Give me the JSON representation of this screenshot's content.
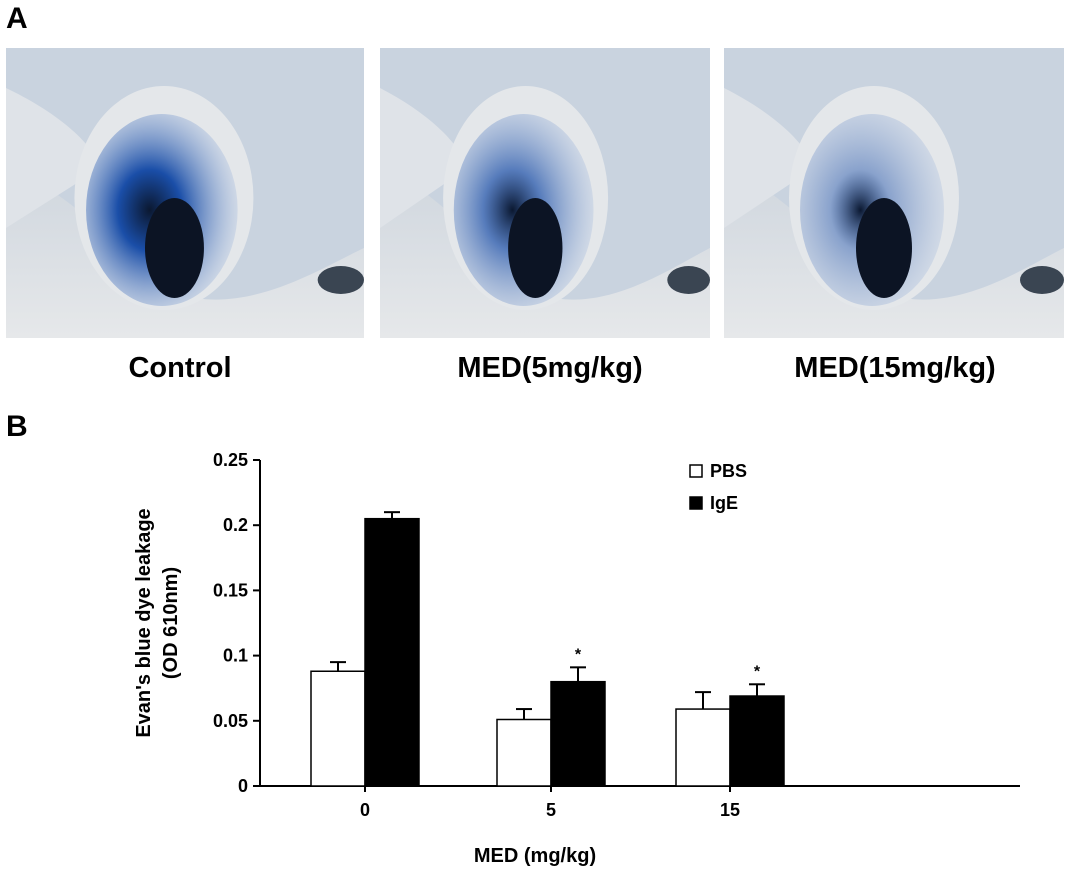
{
  "panel_a": {
    "label": "A",
    "photos": [
      {
        "caption": "Control",
        "dye_intensity": 1.0
      },
      {
        "caption": "MED(5mg/kg)",
        "dye_intensity": 0.7
      },
      {
        "caption": "MED(15mg/kg)",
        "dye_intensity": 0.45
      }
    ]
  },
  "panel_b": {
    "label": "B"
  },
  "chart_data": {
    "type": "bar",
    "categories": [
      "0",
      "5",
      "15"
    ],
    "series": [
      {
        "name": "PBS",
        "fill": "#ffffff",
        "values": [
          0.088,
          0.051,
          0.059
        ],
        "errors": [
          0.007,
          0.008,
          0.013
        ]
      },
      {
        "name": "IgE",
        "fill": "#000000",
        "values": [
          0.205,
          0.08,
          0.069
        ],
        "errors": [
          0.005,
          0.011,
          0.009
        ]
      }
    ],
    "annotations": [
      "",
      "*",
      "*"
    ],
    "xlabel": "MED (mg/kg)",
    "ylabel_lines": [
      "Evan's blue dye leakage",
      "(OD 610nm)"
    ],
    "ylim": [
      0,
      0.25
    ],
    "yticks": [
      0,
      0.05,
      0.1,
      0.15,
      0.2,
      0.25
    ],
    "ytick_labels": [
      "0",
      "0.05",
      "0.1",
      "0.15",
      "0.2",
      "0.25"
    ],
    "grid": false,
    "legend_position": "top-right"
  }
}
